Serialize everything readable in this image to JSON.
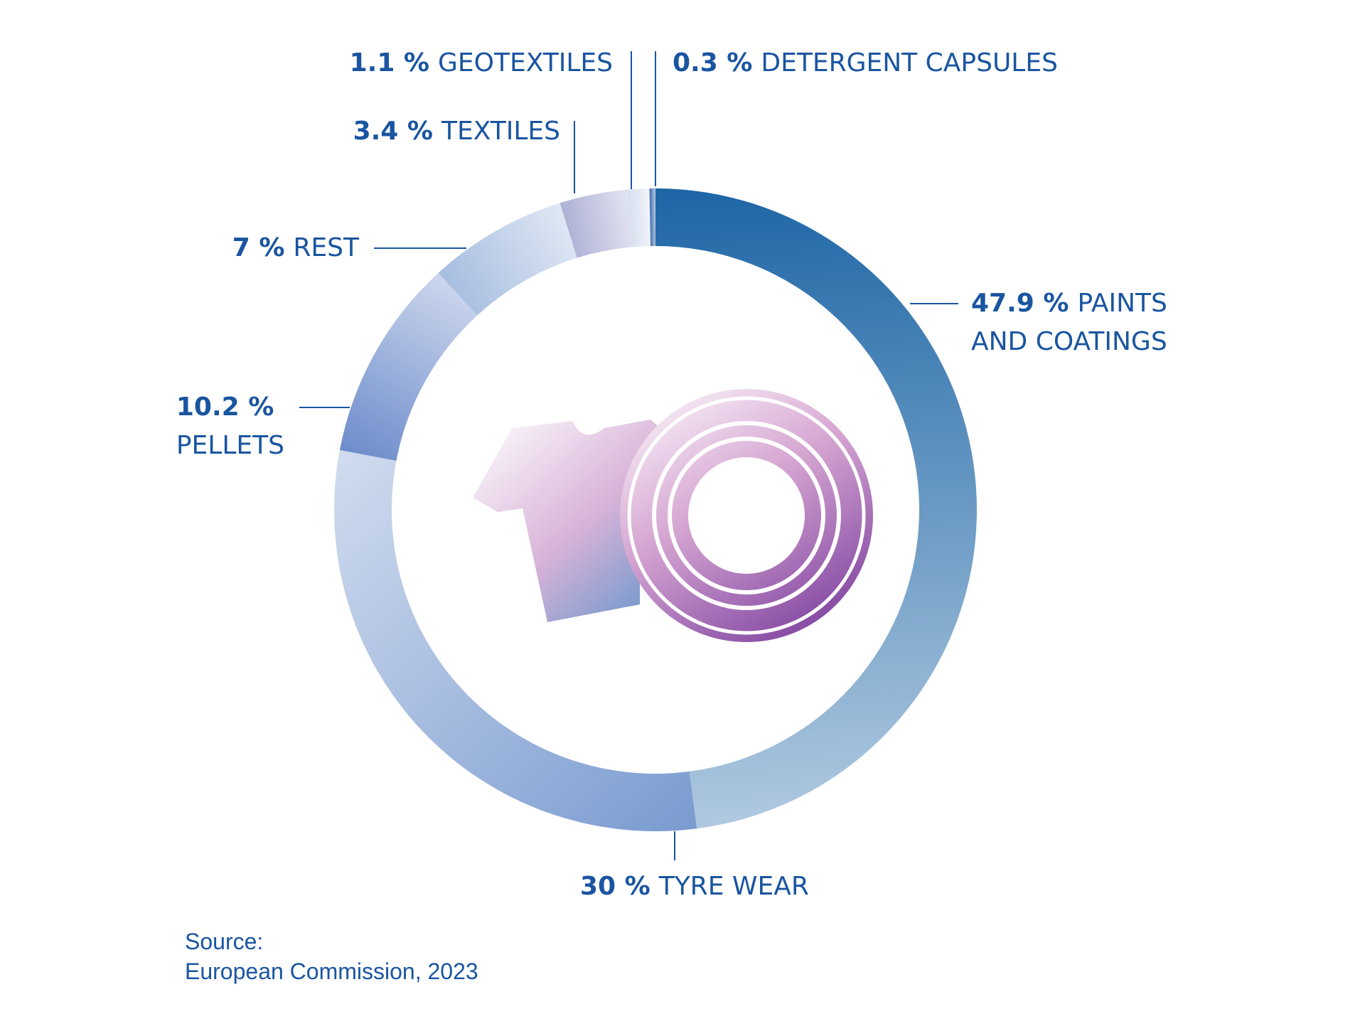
{
  "chart_data": {
    "type": "donut",
    "categories": [
      "PAINTS AND COATINGS",
      "TYRE WEAR",
      "PELLETS",
      "REST",
      "TEXTILES",
      "GEOTEXTILES",
      "DETERGENT CAPSULES"
    ],
    "values": [
      47.9,
      30,
      10.2,
      7,
      3.4,
      1.1,
      0.3
    ],
    "value_labels": [
      "47.9 %",
      "30 %",
      "10.2 %",
      "7 %",
      "3.4 %",
      "1.1 %",
      "0.3 %"
    ],
    "colors": [
      "#1c65a5",
      "#7a9bd0",
      "#6d8ccb",
      "#a6bde0",
      "#aeb0d6",
      "#d7dff0",
      "#3d6ba9"
    ],
    "source_label": "Source:",
    "source": "European Commission, 2023"
  }
}
